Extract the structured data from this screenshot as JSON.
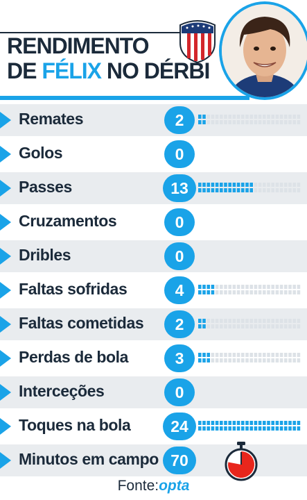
{
  "title": {
    "line1": "RENDIMENTO",
    "line2_pre": "DE ",
    "line2_highlight": "FÉLIX",
    "line2_post": " NO DÉRBI"
  },
  "colors": {
    "accent": "#1aa3e8",
    "text": "#1b2a3a",
    "row_shade": "#e9ecef",
    "dot_empty": "#dde2e7",
    "watch_red": "#e8261c"
  },
  "stats": [
    {
      "label": "Remates",
      "value": "2",
      "bar_fraction": 0.083
    },
    {
      "label": "Golos",
      "value": "0",
      "bar_fraction": 0
    },
    {
      "label": "Passes",
      "value": "13",
      "bar_fraction": 0.54
    },
    {
      "label": "Cruzamentos",
      "value": "0",
      "bar_fraction": 0
    },
    {
      "label": "Dribles",
      "value": "0",
      "bar_fraction": 0
    },
    {
      "label": "Faltas sofridas",
      "value": "4",
      "bar_fraction": 0.17
    },
    {
      "label": "Faltas cometidas",
      "value": "2",
      "bar_fraction": 0.083
    },
    {
      "label": "Perdas de bola",
      "value": "3",
      "bar_fraction": 0.125
    },
    {
      "label": "Interceções",
      "value": "0",
      "bar_fraction": 0
    },
    {
      "label": "Toques na bola",
      "value": "24",
      "bar_fraction": 1.0
    },
    {
      "label": "Minutos em campo",
      "value": "70",
      "bar_fraction": 0
    }
  ],
  "minutes_fraction": 0.78,
  "footer": {
    "prefix": "Fonte:",
    "source": "opta"
  },
  "icons": [
    "arrow-bullet-icon",
    "club-crest-icon",
    "player-portrait",
    "stopwatch-icon"
  ]
}
